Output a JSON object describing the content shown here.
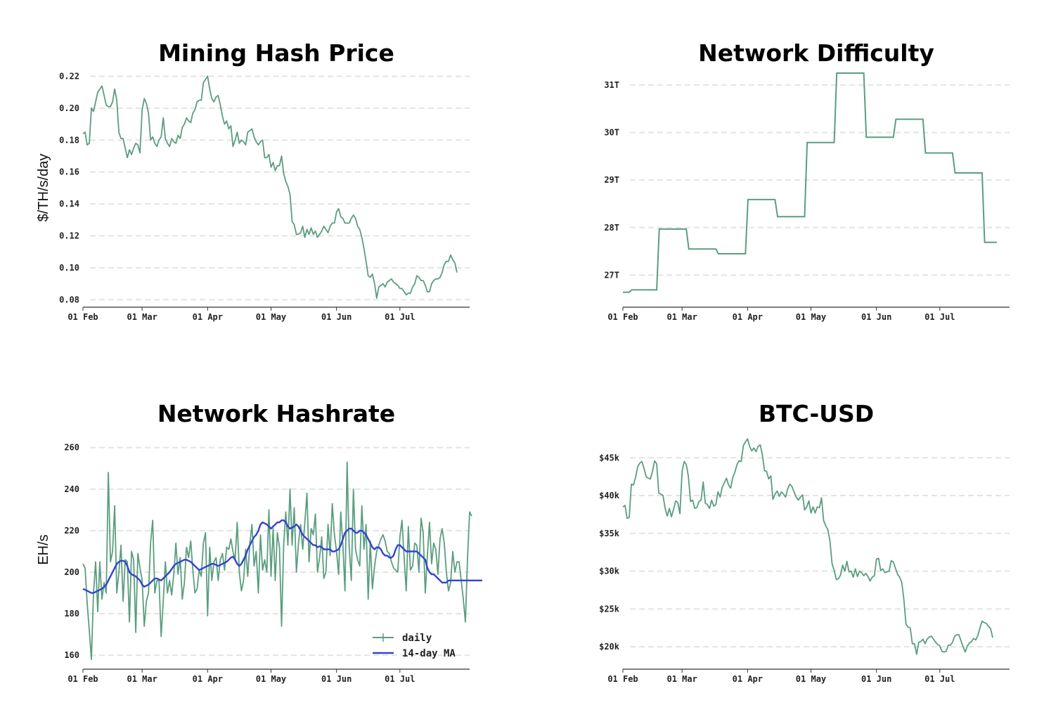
{
  "colors": {
    "series": "#5a9e7f",
    "ma": "#3344cc",
    "grid": "#e3e3e3",
    "axis": "#333333"
  },
  "months": [
    "01 Feb",
    "01 Mar",
    "01 Apr",
    "01 May",
    "01 Jun",
    "01 Jul"
  ],
  "chart_data": [
    {
      "id": "hashprice",
      "type": "line",
      "title": "Mining Hash Price",
      "xlabel": "",
      "ylabel": "$/TH/s/day",
      "ylim": [
        0.0775,
        0.222
      ],
      "yticks": [
        0.08,
        0.1,
        0.12,
        0.14,
        0.16,
        0.18,
        0.2,
        0.22
      ],
      "ytick_labels": [
        "0.08",
        "0.10",
        "0.12",
        "0.14",
        "0.16",
        "0.18",
        "0.20",
        "0.22"
      ],
      "x_start": "2022-02-01",
      "series": [
        {
          "name": "hash price",
          "values": [
            0.184,
            0.185,
            0.177,
            0.178,
            0.2,
            0.198,
            0.204,
            0.21,
            0.212,
            0.214,
            0.208,
            0.202,
            0.201,
            0.201,
            0.204,
            0.212,
            0.205,
            0.185,
            0.181,
            0.181,
            0.175,
            0.169,
            0.174,
            0.171,
            0.175,
            0.178,
            0.177,
            0.172,
            0.199,
            0.206,
            0.203,
            0.197,
            0.18,
            0.182,
            0.178,
            0.176,
            0.18,
            0.182,
            0.194,
            0.181,
            0.178,
            0.176,
            0.181,
            0.179,
            0.178,
            0.183,
            0.181,
            0.188,
            0.19,
            0.194,
            0.192,
            0.191,
            0.197,
            0.199,
            0.204,
            0.205,
            0.205,
            0.216,
            0.218,
            0.22,
            0.212,
            0.206,
            0.204,
            0.207,
            0.208,
            0.202,
            0.195,
            0.19,
            0.192,
            0.187,
            0.189,
            0.176,
            0.18,
            0.185,
            0.178,
            0.18,
            0.179,
            0.177,
            0.185,
            0.186,
            0.187,
            0.182,
            0.179,
            0.177,
            0.179,
            0.18,
            0.169,
            0.169,
            0.171,
            0.163,
            0.166,
            0.161,
            0.164,
            0.164,
            0.17,
            0.159,
            0.154,
            0.151,
            0.146,
            0.129,
            0.127,
            0.121,
            0.121,
            0.122,
            0.126,
            0.119,
            0.124,
            0.121,
            0.125,
            0.121,
            0.123,
            0.119,
            0.121,
            0.123,
            0.126,
            0.124,
            0.122,
            0.126,
            0.128,
            0.128,
            0.135,
            0.137,
            0.132,
            0.131,
            0.128,
            0.128,
            0.128,
            0.131,
            0.133,
            0.131,
            0.126,
            0.124,
            0.119,
            0.112,
            0.104,
            0.095,
            0.094,
            0.096,
            0.09,
            0.081,
            0.088,
            0.089,
            0.09,
            0.088,
            0.091,
            0.092,
            0.093,
            0.091,
            0.09,
            0.089,
            0.087,
            0.087,
            0.085,
            0.083,
            0.084,
            0.084,
            0.088,
            0.09,
            0.095,
            0.094,
            0.092,
            0.092,
            0.089,
            0.085,
            0.085,
            0.09,
            0.092,
            0.093,
            0.093,
            0.094,
            0.097,
            0.102,
            0.104,
            0.104,
            0.108,
            0.105,
            0.103,
            0.097
          ]
        }
      ]
    },
    {
      "id": "difficulty",
      "type": "line",
      "title": "Network Difficulty",
      "xlabel": "",
      "ylabel": "",
      "ylim": [
        26.4,
        31.25
      ],
      "yticks": [
        27,
        28,
        29,
        30,
        31
      ],
      "ytick_labels": [
        "27T",
        "28T",
        "29T",
        "30T",
        "31T"
      ],
      "x_start": "2022-02-01",
      "steps": [
        {
          "day": 0,
          "value": 26.64
        },
        {
          "day": 3,
          "value": 26.69
        },
        {
          "day": 16,
          "value": 27.97
        },
        {
          "day": 30,
          "value": 27.55
        },
        {
          "day": 44,
          "value": 27.45
        },
        {
          "day": 58,
          "value": 28.59
        },
        {
          "day": 72,
          "value": 28.23
        },
        {
          "day": 86,
          "value": 29.79
        },
        {
          "day": 100,
          "value": 31.25
        },
        {
          "day": 114,
          "value": 29.9
        },
        {
          "day": 128,
          "value": 30.28
        },
        {
          "day": 142,
          "value": 29.57
        },
        {
          "day": 156,
          "value": 29.15
        },
        {
          "day": 170,
          "value": 27.69
        }
      ],
      "x_end_day": 177
    },
    {
      "id": "hashrate",
      "type": "line",
      "title": "Network Hashrate",
      "xlabel": "",
      "ylabel": "EH/s",
      "ylim": [
        155,
        266
      ],
      "yticks": [
        160,
        180,
        200,
        220,
        240,
        260
      ],
      "ytick_labels": [
        "160",
        "180",
        "200",
        "220",
        "240",
        "260"
      ],
      "x_start": "2022-02-01",
      "legend": {
        "position": "bottom-right",
        "items": [
          "daily",
          "14-day MA"
        ]
      },
      "series": [
        {
          "name": "daily",
          "values": [
            204,
            202,
            185,
            172,
            158,
            190,
            205,
            181,
            205,
            187,
            195,
            190,
            248,
            205,
            210,
            232,
            190,
            200,
            213,
            186,
            206,
            205,
            176,
            210,
            206,
            171,
            209,
            202,
            196,
            174,
            186,
            190,
            214,
            225,
            190,
            196,
            196,
            169,
            186,
            205,
            190,
            196,
            189,
            199,
            214,
            199,
            207,
            187,
            195,
            212,
            207,
            215,
            201,
            190,
            192,
            201,
            198,
            214,
            219,
            179,
            212,
            196,
            205,
            207,
            196,
            206,
            209,
            201,
            212,
            211,
            216,
            210,
            206,
            224,
            200,
            191,
            196,
            211,
            198,
            214,
            223,
            203,
            210,
            190,
            218,
            201,
            206,
            200,
            230,
            198,
            221,
            196,
            219,
            212,
            174,
            213,
            229,
            213,
            240,
            213,
            231,
            200,
            214,
            223,
            211,
            224,
            238,
            205,
            221,
            218,
            228,
            200,
            207,
            217,
            197,
            200,
            223,
            208,
            233,
            218,
            210,
            199,
            229,
            213,
            191,
            253,
            212,
            196,
            240,
            211,
            206,
            203,
            232,
            211,
            223,
            187,
            215,
            192,
            203,
            210,
            213,
            216,
            218,
            215,
            210,
            209,
            205,
            202,
            201,
            200,
            217,
            225,
            207,
            191,
            222,
            201,
            203,
            214,
            213,
            200,
            226,
            219,
            190,
            208,
            224,
            204,
            214,
            211,
            199,
            216,
            221,
            214,
            200,
            191,
            195,
            210,
            200,
            205,
            205,
            196,
            187,
            176,
            207,
            229,
            227
          ]
        }
      ],
      "ma_series": {
        "name": "14-day MA",
        "values": [
          192,
          191.5,
          191,
          190.5,
          190,
          190,
          190.5,
          191,
          191.5,
          192,
          193,
          194,
          196,
          198,
          200,
          202,
          204,
          205,
          205.5,
          205.5,
          205,
          203,
          200,
          199,
          198.5,
          198,
          197,
          196,
          194,
          193,
          193.5,
          194,
          195,
          196,
          197,
          197,
          196.5,
          196,
          197,
          198,
          199,
          200,
          201.5,
          203,
          204,
          204.5,
          205,
          205.5,
          206,
          206,
          205.5,
          205,
          204,
          203,
          202,
          201,
          201.5,
          202,
          202.5,
          203,
          203.5,
          204,
          204,
          203.5,
          203,
          203.5,
          204,
          204.5,
          205,
          206,
          207,
          207.5,
          206,
          204,
          203,
          204,
          206,
          208,
          211,
          213,
          215,
          217,
          218,
          220,
          223,
          224,
          223.5,
          223,
          222,
          221,
          222,
          223,
          224,
          224,
          225,
          225,
          224,
          222,
          221,
          221.5,
          222,
          223,
          222,
          220,
          218,
          217,
          216,
          215,
          214,
          213,
          213,
          212,
          212.5,
          212,
          211,
          211,
          211,
          211,
          210,
          210,
          210.5,
          211,
          213,
          216,
          219,
          220,
          221,
          221,
          220,
          219,
          219,
          220,
          220,
          219,
          218,
          216,
          214,
          212,
          211,
          212,
          212,
          211,
          209,
          208,
          208,
          207,
          207,
          208,
          211,
          213,
          213,
          212,
          211,
          210,
          210,
          210,
          210,
          210,
          210,
          209,
          208,
          207,
          206,
          202,
          200,
          199,
          199,
          198,
          197,
          196,
          195,
          195,
          195,
          196,
          196,
          196,
          196,
          196,
          196,
          196,
          196,
          196,
          196,
          196,
          196,
          196,
          196,
          196,
          196,
          196
        ]
      }
    },
    {
      "id": "btcusd",
      "type": "line",
      "title": "BTC-USD",
      "xlabel": "",
      "ylabel": "",
      "ylim": [
        17500,
        48000
      ],
      "yticks": [
        20000,
        25000,
        30000,
        35000,
        40000,
        45000
      ],
      "ytick_labels": [
        "$20k",
        "$25k",
        "$30k",
        "$35k",
        "$40k",
        "$45k"
      ],
      "x_start": "2022-02-01",
      "series": [
        {
          "name": "BTC-USD",
          "values": [
            38500,
            38700,
            37000,
            37100,
            41500,
            41400,
            42400,
            43800,
            44300,
            44500,
            43600,
            42500,
            42300,
            42200,
            43200,
            44600,
            44200,
            40300,
            40200,
            40000,
            38300,
            37300,
            38300,
            37200,
            38200,
            39300,
            39100,
            37600,
            43200,
            44500,
            44100,
            42500,
            39200,
            39400,
            38300,
            38400,
            39200,
            39400,
            41800,
            39000,
            38800,
            38300,
            39400,
            38600,
            38800,
            40500,
            39800,
            41100,
            41700,
            42300,
            41400,
            41000,
            42400,
            43100,
            44100,
            44600,
            44500,
            46600,
            47100,
            47500,
            46500,
            45900,
            46300,
            45800,
            46500,
            46700,
            45400,
            43300,
            43200,
            42200,
            42600,
            39500,
            40200,
            40600,
            39900,
            40500,
            40200,
            39800,
            40900,
            41500,
            41200,
            40500,
            39800,
            39400,
            39800,
            40100,
            38100,
            38500,
            39300,
            37700,
            38500,
            37700,
            38500,
            38400,
            39700,
            36700,
            36000,
            35500,
            34000,
            31000,
            30100,
            28900,
            29000,
            29500,
            30800,
            30000,
            31300,
            29900,
            30000,
            29200,
            30300,
            29300,
            30000,
            29800,
            29400,
            29700,
            29300,
            28700,
            29200,
            29400,
            31600,
            31700,
            30100,
            30300,
            29800,
            29900,
            30000,
            31400,
            31200,
            30400,
            29600,
            29200,
            28500,
            26200,
            23000,
            22600,
            22500,
            20400,
            20400,
            19000,
            20600,
            20700,
            21000,
            20400,
            21000,
            21300,
            21400,
            21000,
            20600,
            20300,
            20100,
            19400,
            19300,
            19400,
            20200,
            20200,
            20600,
            21400,
            21600,
            21600,
            20800,
            20000,
            19300,
            20100,
            20500,
            20700,
            21100,
            20900,
            21500,
            22500,
            23400,
            23200,
            23100,
            22700,
            22400,
            21200
          ]
        }
      ]
    }
  ]
}
